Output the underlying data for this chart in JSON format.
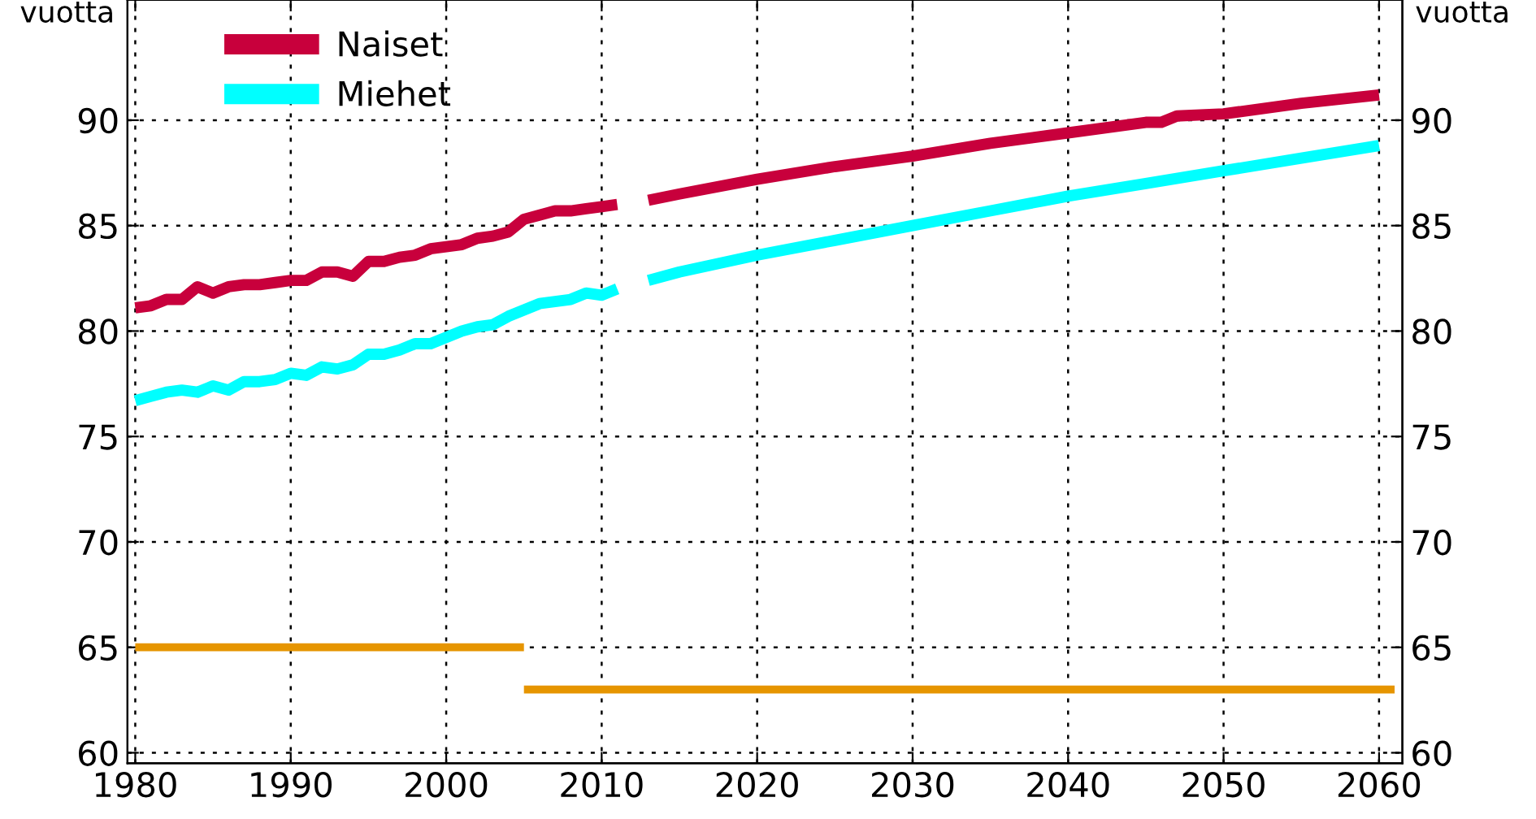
{
  "chart_data": {
    "type": "line",
    "ylabel": "vuotta",
    "y2label": "vuotta",
    "series": [
      {
        "name": "Naiset",
        "color": "#c8003c",
        "x": [
          1980,
          1981,
          1982,
          1983,
          1984,
          1985,
          1986,
          1987,
          1988,
          1989,
          1990,
          1991,
          1992,
          1993,
          1994,
          1995,
          1996,
          1997,
          1998,
          1999,
          2000,
          2001,
          2002,
          2003,
          2004,
          2005,
          2006,
          2007,
          2008,
          2009,
          2010,
          2011,
          2012,
          2013,
          2015,
          2020,
          2025,
          2030,
          2035,
          2040,
          2045,
          2046,
          2047,
          2050,
          2055,
          2060
        ],
        "values": [
          81.1,
          81.2,
          81.5,
          81.5,
          82.1,
          81.8,
          82.1,
          82.2,
          82.2,
          82.3,
          82.4,
          82.4,
          82.8,
          82.8,
          82.6,
          83.3,
          83.3,
          83.5,
          83.6,
          83.9,
          84.0,
          84.1,
          84.4,
          84.5,
          84.7,
          85.3,
          85.5,
          85.7,
          85.7,
          85.8,
          85.9,
          86.0,
          null,
          86.2,
          86.5,
          87.2,
          87.8,
          88.3,
          88.9,
          89.4,
          89.9,
          89.9,
          90.2,
          90.3,
          90.8,
          91.2
        ]
      },
      {
        "name": "Miehet",
        "color": "#00ffff",
        "x": [
          1980,
          1981,
          1982,
          1983,
          1984,
          1985,
          1986,
          1987,
          1988,
          1989,
          1990,
          1991,
          1992,
          1993,
          1994,
          1995,
          1996,
          1997,
          1998,
          1999,
          2000,
          2001,
          2002,
          2003,
          2004,
          2005,
          2006,
          2007,
          2008,
          2009,
          2010,
          2011,
          2012,
          2013,
          2015,
          2020,
          2025,
          2030,
          2035,
          2040,
          2045,
          2050,
          2055,
          2060
        ],
        "values": [
          76.7,
          76.9,
          77.1,
          77.2,
          77.1,
          77.4,
          77.2,
          77.6,
          77.6,
          77.7,
          78.0,
          77.9,
          78.3,
          78.2,
          78.4,
          78.9,
          78.9,
          79.1,
          79.4,
          79.4,
          79.7,
          80.0,
          80.2,
          80.3,
          80.7,
          81.0,
          81.3,
          81.4,
          81.5,
          81.8,
          81.7,
          82.0,
          null,
          82.4,
          82.8,
          83.6,
          84.3,
          85.0,
          85.7,
          86.4,
          87.0,
          87.6,
          88.2,
          88.8
        ]
      },
      {
        "color": "#e69500",
        "x": [
          1980,
          2005
        ],
        "values": [
          65,
          65
        ]
      },
      {
        "color": "#e69500",
        "x": [
          2005,
          2061
        ],
        "values": [
          63,
          63
        ]
      }
    ],
    "xlim": [
      1979.5,
      2061.5
    ],
    "xticks": [
      1980,
      1990,
      2000,
      2010,
      2020,
      2030,
      2040,
      2050,
      2060
    ],
    "ylim": [
      59.5,
      95.7
    ],
    "yticks": [
      60,
      65,
      70,
      75,
      80,
      85,
      90
    ],
    "y2lim": [
      59.5,
      95.7
    ],
    "y2ticks": [
      60,
      65,
      70,
      75,
      80,
      85,
      90
    ],
    "grid": true,
    "legend": "top left",
    "line_style": "solid",
    "marker": "none"
  }
}
